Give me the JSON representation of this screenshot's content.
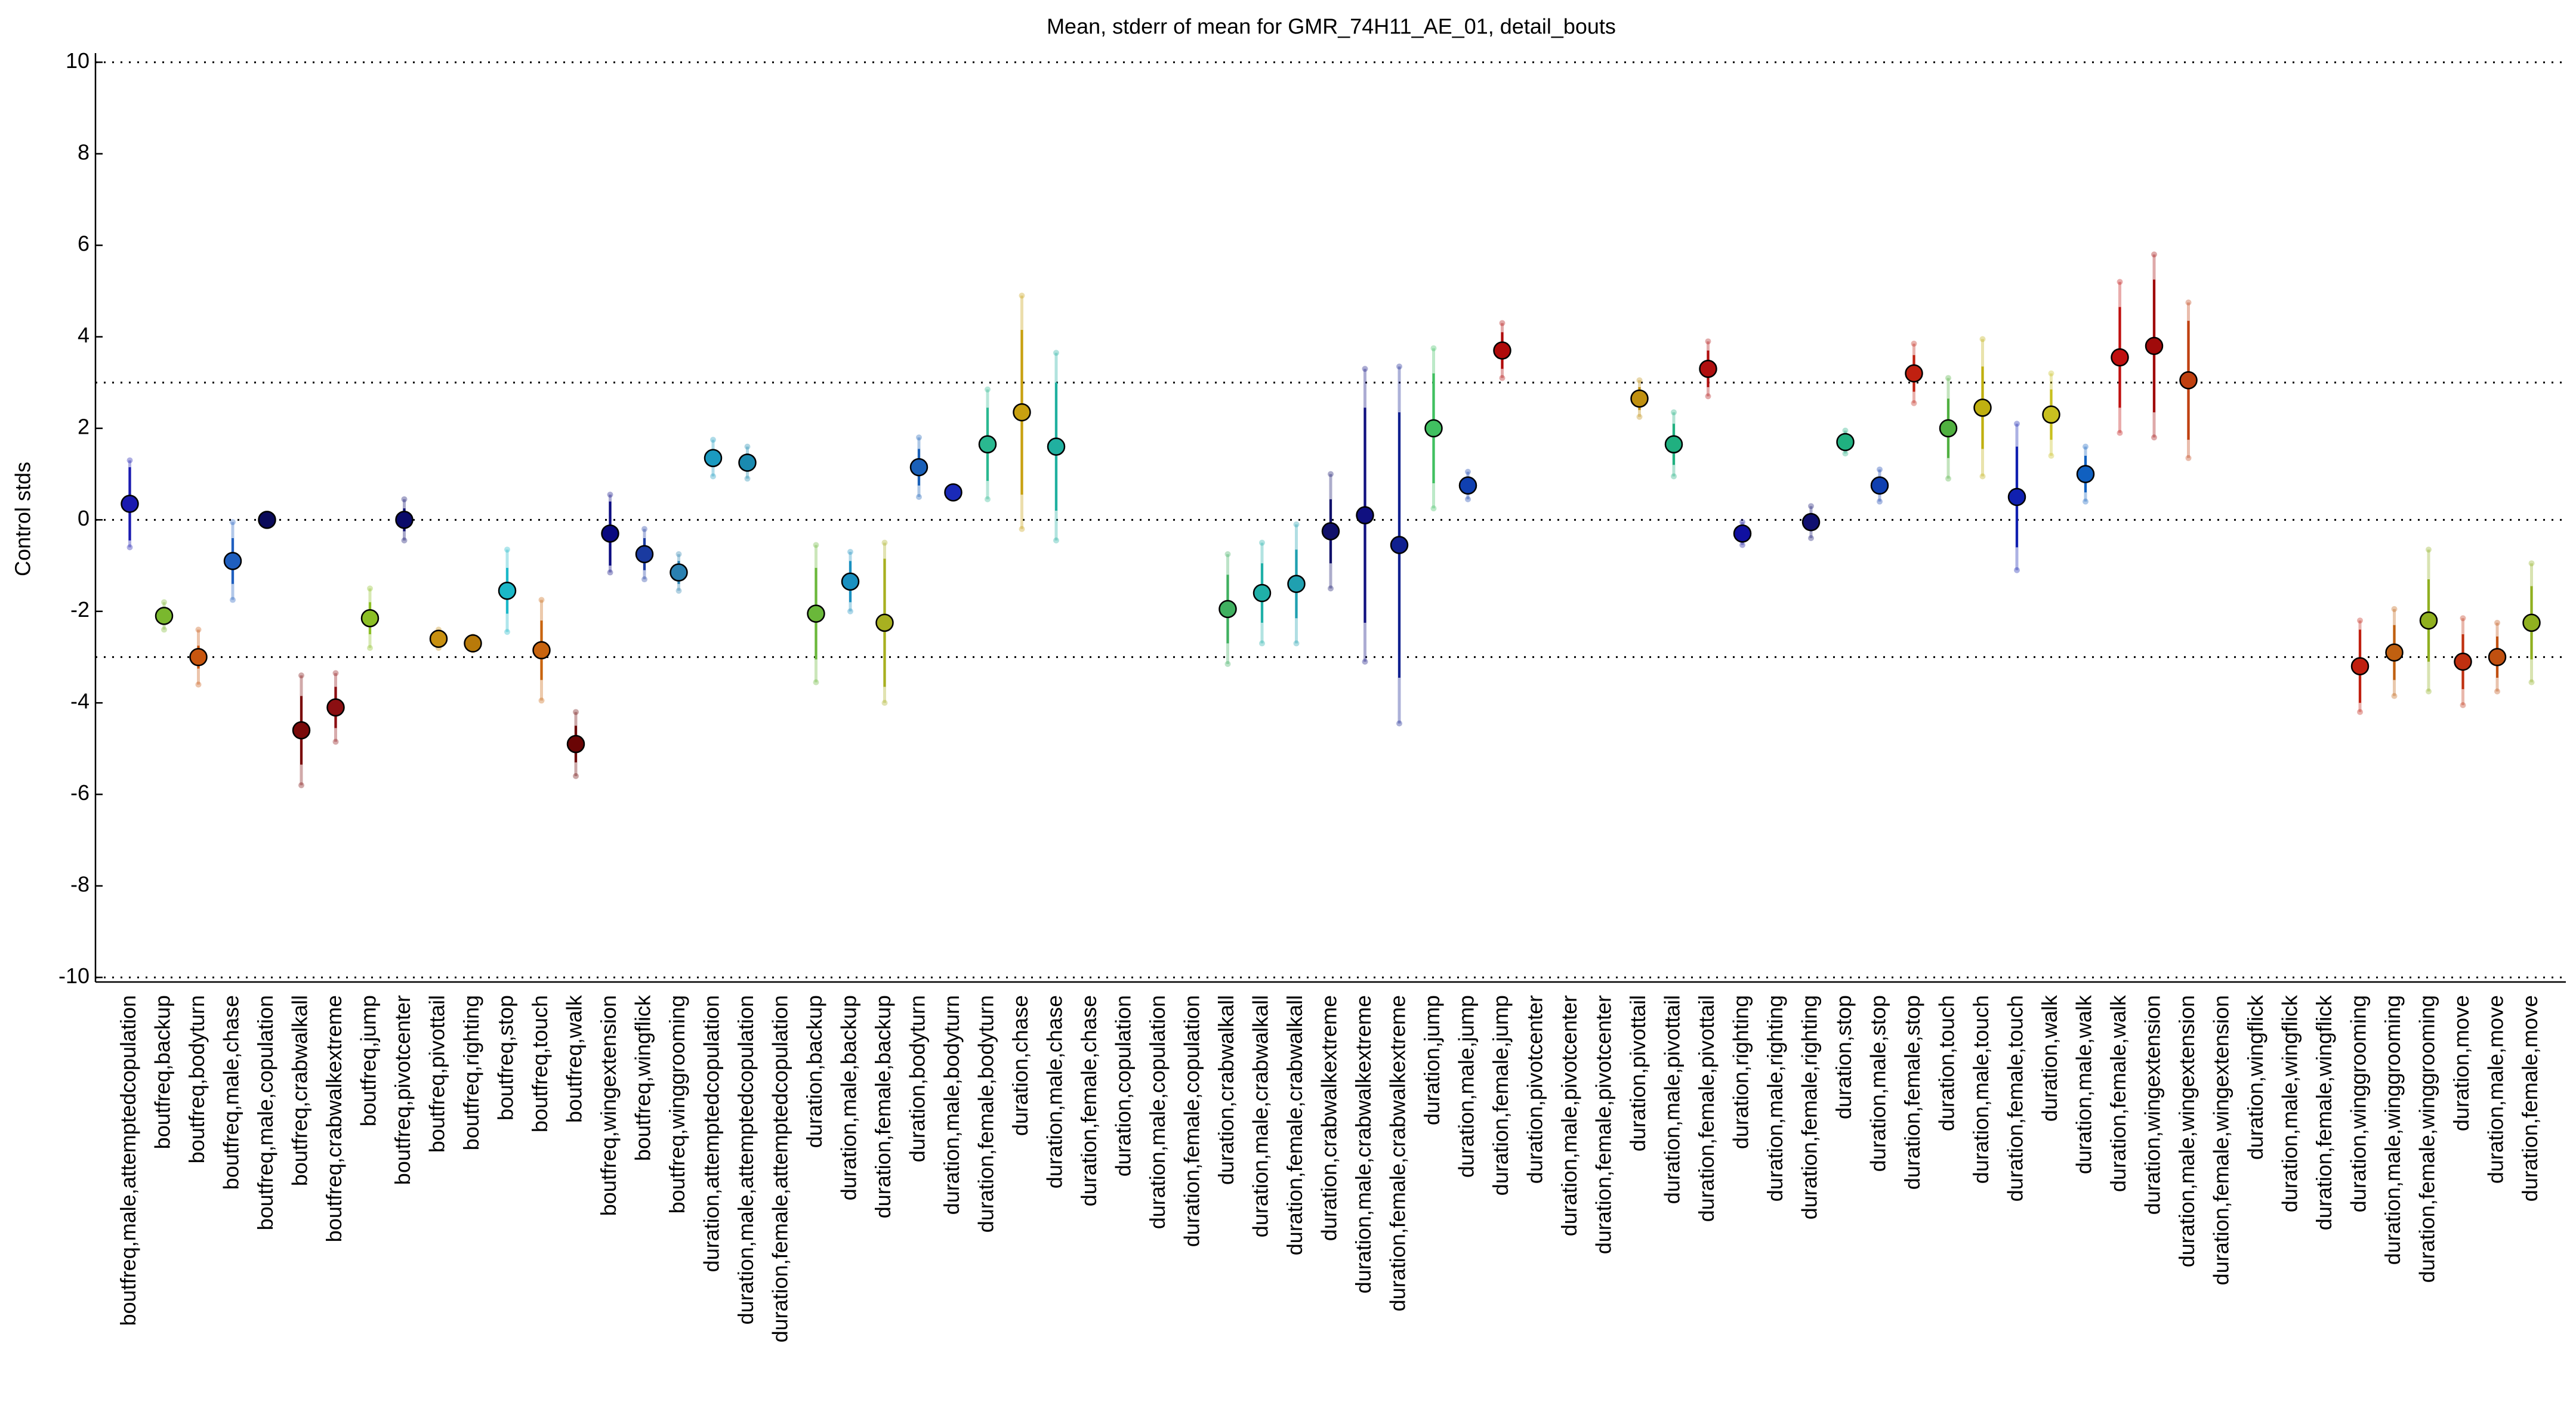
{
  "chart_data": {
    "type": "errorbar",
    "title": "Mean, stderr of mean for GMR_74H11_AE_01, detail_bouts",
    "ylabel": "Control stds",
    "ylim": [
      -10.1,
      10.2
    ],
    "yticks": [
      -10,
      -8,
      -6,
      -4,
      -2,
      0,
      2,
      4,
      6,
      8,
      10
    ],
    "hlines": [
      10,
      3,
      0,
      -3,
      -10
    ],
    "categories": [
      "boutfreq,male,attemptedcopulation",
      "boutfreq,backup",
      "boutfreq,bodyturn",
      "boutfreq,male,chase",
      "boutfreq,male,copulation",
      "boutfreq,crabwalkall",
      "boutfreq,crabwalkextreme",
      "boutfreq,jump",
      "boutfreq,pivotcenter",
      "boutfreq,pivottail",
      "boutfreq,righting",
      "boutfreq,stop",
      "boutfreq,touch",
      "boutfreq,walk",
      "boutfreq,wingextension",
      "boutfreq,wingflick",
      "boutfreq,winggrooming",
      "duration,attemptedcopulation",
      "duration,male,attemptedcopulation",
      "duration,female,attemptedcopulation",
      "duration,backup",
      "duration,male,backup",
      "duration,female,backup",
      "duration,bodyturn",
      "duration,male,bodyturn",
      "duration,female,bodyturn",
      "duration,chase",
      "duration,male,chase",
      "duration,female,chase",
      "duration,copulation",
      "duration,male,copulation",
      "duration,female,copulation",
      "duration,crabwalkall",
      "duration,male,crabwalkall",
      "duration,female,crabwalkall",
      "duration,crabwalkextreme",
      "duration,male,crabwalkextreme",
      "duration,female,crabwalkextreme",
      "duration,jump",
      "duration,male,jump",
      "duration,female,jump",
      "duration,pivotcenter",
      "duration,male,pivotcenter",
      "duration,female,pivotcenter",
      "duration,pivottail",
      "duration,male,pivottail",
      "duration,female,pivottail",
      "duration,righting",
      "duration,male,righting",
      "duration,female,righting",
      "duration,stop",
      "duration,male,stop",
      "duration,female,stop",
      "duration,touch",
      "duration,male,touch",
      "duration,female,touch",
      "duration,walk",
      "duration,male,walk",
      "duration,female,walk",
      "duration,wingextension",
      "duration,male,wingextension",
      "duration,female,wingextension",
      "duration,wingflick",
      "duration,male,wingflick",
      "duration,female,wingflick",
      "duration,winggrooming",
      "duration,male,winggrooming",
      "duration,female,winggrooming",
      "duration,move",
      "duration,male,move",
      "duration,female,move"
    ],
    "colors": [
      "#1a1ab0",
      "#7ab82e",
      "#c8560f",
      "#1f5fbf",
      "#0a0a5a",
      "#7a0a0a",
      "#8b0f12",
      "#8cbf26",
      "#0a0a6a",
      "#c89010",
      "#b87a0a",
      "#1ab8c8",
      "#c8640f",
      "#6a0505",
      "#0a0a80",
      "#1a3aa0",
      "#2a80b0",
      "#1a9ac0",
      "#1a8ab0",
      "#999999",
      "#6ab83a",
      "#1a90c0",
      "#a8b020",
      "#1a60b8",
      "#1a2ab8",
      "#2ab890",
      "#c8a010",
      "#20b0a0",
      "#999999",
      "#999999",
      "#999999",
      "#999999",
      "#40b060",
      "#20b0a8",
      "#20a0b0",
      "#10106a",
      "#101080",
      "#102090",
      "#40c060",
      "#1040b0",
      "#b00a0a",
      "#999999",
      "#999999",
      "#999999",
      "#c09010",
      "#20b080",
      "#b01010",
      "#1010a0",
      "#999999",
      "#101070",
      "#20b080",
      "#1040b0",
      "#c02010",
      "#50b040",
      "#c0b010",
      "#1020b0",
      "#c8c020",
      "#1060c0",
      "#c01010",
      "#a00a0a",
      "#c04010",
      "#999999",
      "#999999",
      "#999999",
      "#999999",
      "#c02010",
      "#c06010",
      "#90b020",
      "#c03010",
      "#c05010",
      "#90b020"
    ],
    "values": [
      0.35,
      -2.1,
      -3.0,
      -0.9,
      0.0,
      -4.6,
      -4.1,
      -2.15,
      0.0,
      -2.6,
      -2.7,
      -1.55,
      -2.85,
      -4.9,
      -0.3,
      -0.75,
      -1.15,
      1.35,
      1.25,
      null,
      -2.05,
      -1.35,
      -2.25,
      1.15,
      0.6,
      1.65,
      2.35,
      1.6,
      null,
      null,
      null,
      null,
      -1.95,
      -1.6,
      -1.4,
      -0.25,
      0.1,
      -0.55,
      2.0,
      0.75,
      3.7,
      null,
      null,
      null,
      2.65,
      1.65,
      3.3,
      -0.3,
      null,
      -0.05,
      1.7,
      0.75,
      3.2,
      2.0,
      2.45,
      0.5,
      2.3,
      1.0,
      3.55,
      3.8,
      3.05,
      null,
      null,
      null,
      null,
      -3.2,
      -2.9,
      -2.2,
      -3.1,
      -3.0,
      -2.25
    ],
    "stderr": [
      0.8,
      0.1,
      0.25,
      0.5,
      0.05,
      0.75,
      0.45,
      0.35,
      0.25,
      0.1,
      0.08,
      0.5,
      0.65,
      0.4,
      0.7,
      0.35,
      0.25,
      0.2,
      0.2,
      null,
      1.0,
      0.45,
      1.4,
      0.4,
      0.05,
      0.8,
      1.8,
      1.4,
      null,
      null,
      null,
      null,
      0.75,
      0.65,
      0.75,
      0.7,
      2.35,
      2.9,
      1.2,
      0.2,
      0.4,
      null,
      null,
      null,
      0.25,
      0.45,
      0.4,
      0.15,
      null,
      0.2,
      0.15,
      0.2,
      0.4,
      0.65,
      0.9,
      1.1,
      0.55,
      0.4,
      1.1,
      1.45,
      1.3,
      null,
      null,
      null,
      null,
      0.8,
      0.6,
      0.9,
      0.6,
      0.45,
      0.8
    ],
    "spread": [
      0.95,
      0.3,
      0.6,
      0.85,
      0.1,
      1.2,
      0.75,
      0.65,
      0.45,
      0.2,
      0.15,
      0.9,
      1.1,
      0.7,
      0.85,
      0.55,
      0.4,
      0.4,
      0.35,
      null,
      1.5,
      0.65,
      1.75,
      0.65,
      0.1,
      1.2,
      2.55,
      2.05,
      null,
      null,
      null,
      null,
      1.2,
      1.1,
      1.3,
      1.25,
      3.2,
      3.9,
      1.75,
      0.3,
      0.6,
      null,
      null,
      null,
      0.4,
      0.7,
      0.6,
      0.25,
      null,
      0.35,
      0.25,
      0.35,
      0.65,
      1.1,
      1.5,
      1.6,
      0.9,
      0.6,
      1.65,
      2.0,
      1.7,
      null,
      null,
      null,
      null,
      1.0,
      0.95,
      1.55,
      0.95,
      0.75,
      1.3
    ]
  }
}
